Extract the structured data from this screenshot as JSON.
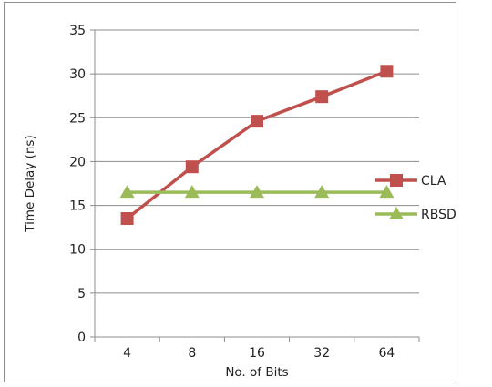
{
  "chart_data": {
    "type": "line",
    "title": "",
    "xlabel": "No. of Bits",
    "ylabel": "Time Delay (ns)",
    "categories": [
      "4",
      "8",
      "16",
      "32",
      "64"
    ],
    "ylim": [
      0,
      35
    ],
    "yticks": [
      "0",
      "5",
      "10",
      "15",
      "20",
      "25",
      "30",
      "35"
    ],
    "grid": "horizontal",
    "legend_position": "right",
    "series": [
      {
        "name": "CLA",
        "values": [
          13.5,
          19.4,
          24.6,
          27.4,
          30.3
        ],
        "color": "#c0504d",
        "marker": "square"
      },
      {
        "name": "RBSD",
        "values": [
          16.5,
          16.5,
          16.5,
          16.5,
          16.5
        ],
        "color": "#9bbb59",
        "marker": "triangle"
      }
    ]
  }
}
